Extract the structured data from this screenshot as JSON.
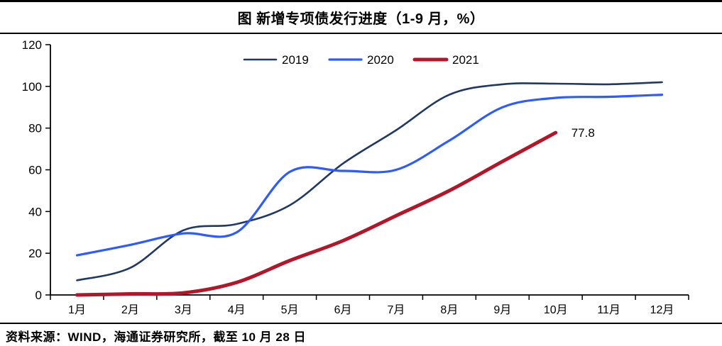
{
  "header": {
    "title": "图 新增专项债发行进度（1-9 月，%）"
  },
  "footer": {
    "source": "资料来源：WIND，海通证券研究所，截至 10 月 28 日"
  },
  "chart_data": {
    "type": "line",
    "title": "图 新增专项债发行进度（1-9 月，%）",
    "categories": [
      "1月",
      "2月",
      "3月",
      "4月",
      "5月",
      "6月",
      "7月",
      "8月",
      "9月",
      "10月",
      "11月",
      "12月"
    ],
    "xlabel": "",
    "ylabel": "",
    "ylim": [
      0,
      120
    ],
    "yticks": [
      0,
      20,
      40,
      60,
      80,
      100,
      120
    ],
    "grid": false,
    "legend_position": "top-center",
    "axis_color": "#000000",
    "series": [
      {
        "name": "2019",
        "color": "#1F3864",
        "width": 2.6,
        "values": [
          7,
          13,
          31,
          34,
          43,
          63,
          79,
          96,
          101,
          101.3,
          101,
          102
        ]
      },
      {
        "name": "2020",
        "color": "#2E5BFF",
        "width": 3.2,
        "values": [
          19,
          24,
          29.5,
          30,
          59,
          59.5,
          60,
          74,
          90,
          94.5,
          95,
          96
        ]
      },
      {
        "name": "2021",
        "color": "#B31629",
        "width": 5,
        "values": [
          0,
          0.5,
          1,
          6,
          16.5,
          26,
          38,
          50,
          64,
          77.8
        ]
      }
    ],
    "annotation": {
      "text": "77.8",
      "series": "2021",
      "month": "10月",
      "value": 77.8
    }
  }
}
